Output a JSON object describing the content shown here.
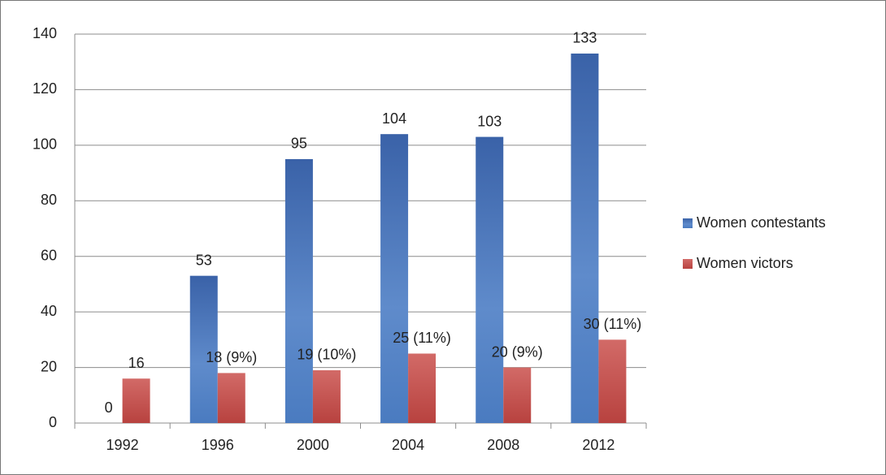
{
  "chart_data": {
    "type": "bar",
    "categories": [
      "1992",
      "1996",
      "2000",
      "2004",
      "2008",
      "2012"
    ],
    "series": [
      {
        "name": "Women contestants",
        "color": "#3f6db5",
        "values": [
          0,
          53,
          95,
          104,
          103,
          133
        ]
      },
      {
        "name": "Women victors",
        "color": "#c0504d",
        "values": [
          16,
          18,
          19,
          25,
          20,
          30
        ],
        "value_labels": [
          "16",
          "18 (9%)",
          "19 (10%)",
          "25 (11%)",
          "20 (9%)",
          "30 (11%)"
        ]
      }
    ],
    "ylim": [
      0,
      140
    ],
    "yticks": [
      0,
      20,
      40,
      60,
      80,
      100,
      120,
      140
    ],
    "grid": true,
    "legend": "right"
  }
}
